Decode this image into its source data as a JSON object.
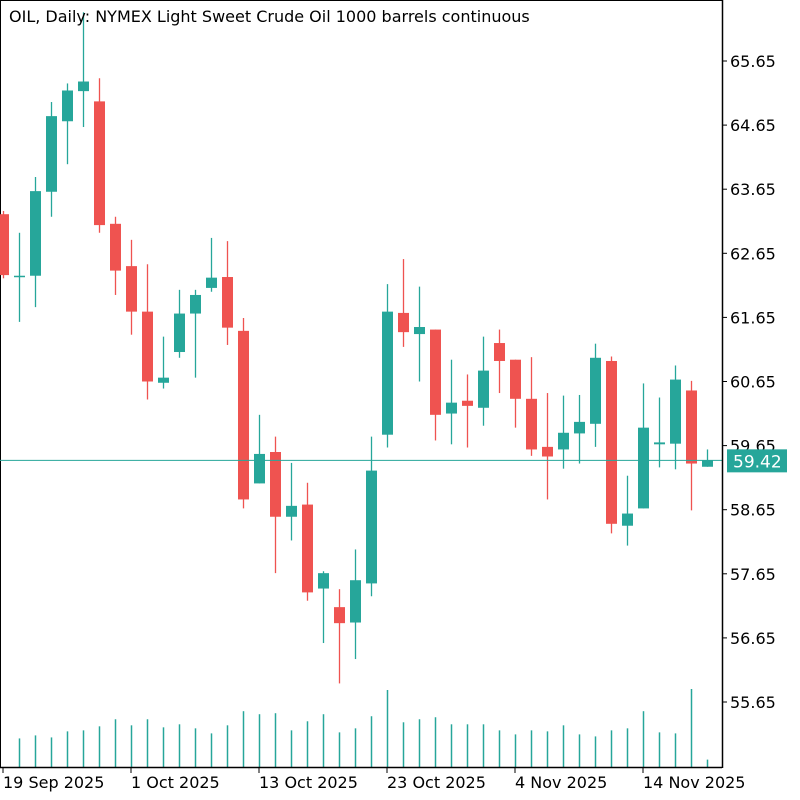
{
  "chart_data": {
    "type": "candlestick",
    "title": "OIL, Daily:  NYMEX Light Sweet Crude Oil 1000 barrels continuous",
    "symbol": "OIL",
    "timeframe": "Daily",
    "ylim": [
      55.2,
      66.6
    ],
    "y_ticks": [
      "65.65",
      "64.65",
      "63.65",
      "62.65",
      "61.65",
      "60.65",
      "59.65",
      "58.65",
      "57.65",
      "56.65",
      "55.65"
    ],
    "x_tick_labels": [
      {
        "index": 0,
        "label": "19 Sep 2025"
      },
      {
        "index": 8,
        "label": "1 Oct 2025"
      },
      {
        "index": 16,
        "label": "13 Oct 2025"
      },
      {
        "index": 24,
        "label": "23 Oct 2025"
      },
      {
        "index": 32,
        "label": "4 Nov 2025"
      },
      {
        "index": 40,
        "label": "14 Nov 2025"
      }
    ],
    "current_price": "59.42",
    "colors": {
      "up": "#26a69a",
      "down": "#ef5350",
      "price_line": "#26a69a"
    },
    "candles": [
      [
        63.26,
        63.31,
        62.26,
        62.31
      ],
      [
        62.3,
        62.97,
        61.58,
        62.3
      ],
      [
        62.3,
        63.84,
        61.81,
        63.62
      ],
      [
        63.61,
        65.01,
        63.22,
        64.79
      ],
      [
        64.71,
        65.3,
        64.04,
        65.19
      ],
      [
        65.18,
        66.41,
        64.62,
        65.33
      ],
      [
        65.02,
        65.38,
        62.97,
        63.09
      ],
      [
        63.11,
        63.22,
        62.0,
        62.38
      ],
      [
        62.45,
        62.86,
        61.38,
        61.74
      ],
      [
        61.74,
        62.48,
        60.37,
        60.65
      ],
      [
        60.63,
        61.35,
        60.54,
        60.71
      ],
      [
        61.11,
        62.08,
        61.02,
        61.71
      ],
      [
        61.71,
        62.08,
        60.71,
        62.0
      ],
      [
        62.11,
        62.89,
        62.05,
        62.27
      ],
      [
        62.28,
        62.84,
        61.22,
        61.49
      ],
      [
        61.44,
        61.64,
        58.67,
        58.81
      ],
      [
        59.06,
        60.13,
        59.06,
        59.52
      ],
      [
        59.55,
        59.79,
        57.66,
        58.54
      ],
      [
        58.54,
        59.38,
        58.17,
        58.71
      ],
      [
        58.73,
        59.07,
        57.23,
        57.36
      ],
      [
        57.42,
        57.69,
        56.57,
        57.66
      ],
      [
        57.13,
        57.41,
        55.94,
        56.88
      ],
      [
        56.89,
        58.03,
        56.32,
        57.55
      ],
      [
        57.5,
        59.79,
        57.3,
        59.26
      ],
      [
        59.82,
        62.17,
        59.62,
        61.74
      ],
      [
        61.72,
        62.56,
        61.19,
        61.42
      ],
      [
        61.39,
        62.13,
        60.65,
        61.5
      ],
      [
        61.46,
        61.46,
        59.73,
        60.13
      ],
      [
        60.15,
        60.99,
        59.67,
        60.32
      ],
      [
        60.35,
        60.76,
        59.62,
        60.27
      ],
      [
        60.24,
        61.35,
        59.96,
        60.82
      ],
      [
        61.25,
        61.46,
        60.47,
        60.97
      ],
      [
        60.99,
        60.99,
        59.93,
        60.38
      ],
      [
        60.38,
        61.03,
        59.49,
        59.59
      ],
      [
        59.63,
        60.47,
        58.81,
        59.48
      ],
      [
        59.59,
        60.43,
        59.29,
        59.85
      ],
      [
        59.84,
        60.44,
        59.37,
        60.02
      ],
      [
        59.99,
        61.24,
        59.63,
        61.02
      ],
      [
        60.97,
        61.04,
        58.28,
        58.43
      ],
      [
        58.4,
        59.18,
        58.09,
        58.59
      ],
      [
        58.67,
        60.62,
        58.67,
        59.93
      ],
      [
        59.67,
        60.4,
        59.31,
        59.7
      ],
      [
        59.68,
        60.9,
        59.28,
        60.68
      ],
      [
        60.51,
        60.66,
        58.64,
        59.37
      ],
      [
        59.32,
        59.59,
        59.32,
        59.42
      ]
    ],
    "candle_fields": [
      "open",
      "high",
      "low",
      "close"
    ],
    "volume_relative": [
      null,
      85,
      94,
      88,
      106,
      109,
      121,
      142,
      124,
      142,
      118,
      127,
      115,
      100,
      124,
      166,
      157,
      160,
      109,
      136,
      157,
      103,
      115,
      151,
      229,
      133,
      142,
      148,
      127,
      127,
      127,
      109,
      97,
      109,
      106,
      124,
      97,
      91,
      109,
      115,
      166,
      103,
      100,
      232,
      22
    ]
  }
}
